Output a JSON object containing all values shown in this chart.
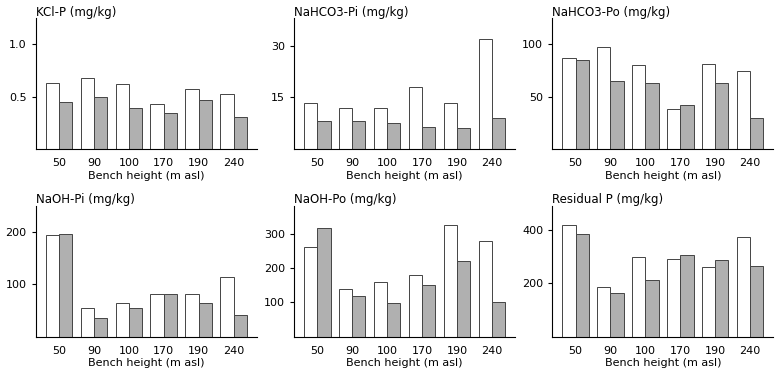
{
  "subplots": [
    {
      "title": "KCl-P (mg/kg)",
      "categories": [
        "50",
        "90",
        "100",
        "170",
        "190",
        "240"
      ],
      "white": [
        0.63,
        0.68,
        0.62,
        0.43,
        0.57,
        0.53
      ],
      "gray": [
        0.45,
        0.5,
        0.39,
        0.34,
        0.47,
        0.31
      ],
      "ylim": [
        0,
        1.25
      ],
      "yticks": [
        0.5,
        1.0
      ]
    },
    {
      "title": "NaHCO3-Pi (mg/kg)",
      "categories": [
        "50",
        "90",
        "100",
        "170",
        "190",
        "240"
      ],
      "white": [
        13.5,
        12.0,
        12.0,
        18.0,
        13.5,
        32.0
      ],
      "gray": [
        8.0,
        8.0,
        7.5,
        6.5,
        6.0,
        9.0
      ],
      "ylim": [
        0,
        38
      ],
      "yticks": [
        15,
        30
      ]
    },
    {
      "title": "NaHCO3-Po (mg/kg)",
      "categories": [
        "50",
        "90",
        "100",
        "170",
        "190",
        "240"
      ],
      "white": [
        87,
        98,
        80,
        38,
        81,
        75
      ],
      "gray": [
        85,
        65,
        63,
        42,
        63,
        30
      ],
      "ylim": [
        0,
        125
      ],
      "yticks": [
        50,
        100
      ]
    },
    {
      "title": "NaOH-Pi (mg/kg)",
      "categories": [
        "50",
        "90",
        "100",
        "170",
        "190",
        "240"
      ],
      "white": [
        195,
        55,
        65,
        82,
        82,
        115
      ],
      "gray": [
        197,
        35,
        55,
        82,
        65,
        42
      ],
      "ylim": [
        0,
        250
      ],
      "yticks": [
        100,
        200
      ]
    },
    {
      "title": "NaOH-Po (mg/kg)",
      "categories": [
        "50",
        "90",
        "100",
        "170",
        "190",
        "240"
      ],
      "white": [
        262,
        140,
        160,
        180,
        325,
        278
      ],
      "gray": [
        315,
        118,
        97,
        150,
        220,
        100
      ],
      "ylim": [
        0,
        380
      ],
      "yticks": [
        100,
        200,
        300
      ]
    },
    {
      "title": "Residual P (mg/kg)",
      "categories": [
        "50",
        "90",
        "100",
        "170",
        "190",
        "240"
      ],
      "white": [
        420,
        188,
        300,
        290,
        260,
        375
      ],
      "gray": [
        385,
        165,
        213,
        305,
        288,
        265
      ],
      "ylim": [
        0,
        490
      ],
      "yticks": [
        200,
        400
      ]
    }
  ],
  "bar_width": 0.38,
  "white_color": "white",
  "gray_color": "#b0b0b0",
  "edge_color": "#444444",
  "xlabel": "Bench height (m asl)",
  "title_fontsize": 8.5,
  "label_fontsize": 8,
  "tick_fontsize": 8
}
